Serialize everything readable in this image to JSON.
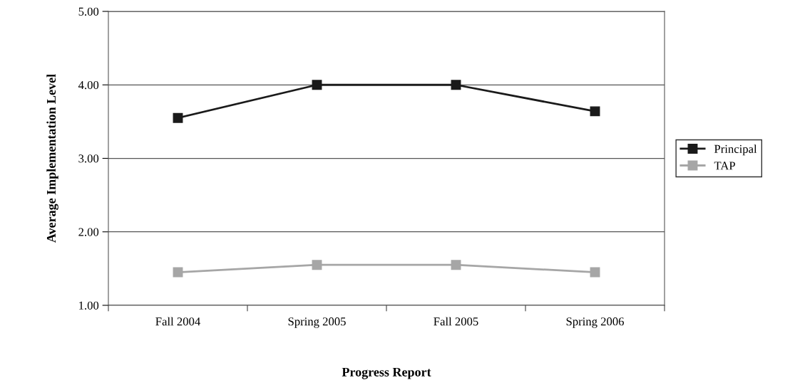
{
  "chart_data": {
    "type": "line",
    "xlabel": "Progress Report",
    "ylabel": "Average Implementation Level",
    "categories": [
      "Fall 2004",
      "Spring 2005",
      "Fall 2005",
      "Spring 2006"
    ],
    "series": [
      {
        "name": "Principal",
        "color": "#1a1a1a",
        "values": [
          3.55,
          4.0,
          4.0,
          3.64
        ]
      },
      {
        "name": "TAP",
        "color": "#a6a6a6",
        "values": [
          1.45,
          1.55,
          1.55,
          1.45
        ]
      }
    ],
    "ylim": [
      1,
      5
    ],
    "yticks": [
      {
        "value": 1,
        "label": "1.00"
      },
      {
        "value": 2,
        "label": "2.00"
      },
      {
        "value": 3,
        "label": "3.00"
      },
      {
        "value": 4,
        "label": "4.00"
      },
      {
        "value": 5,
        "label": "5.00"
      }
    ],
    "grid": "y",
    "legend": "right",
    "marker": "square",
    "line_style": "solid"
  }
}
